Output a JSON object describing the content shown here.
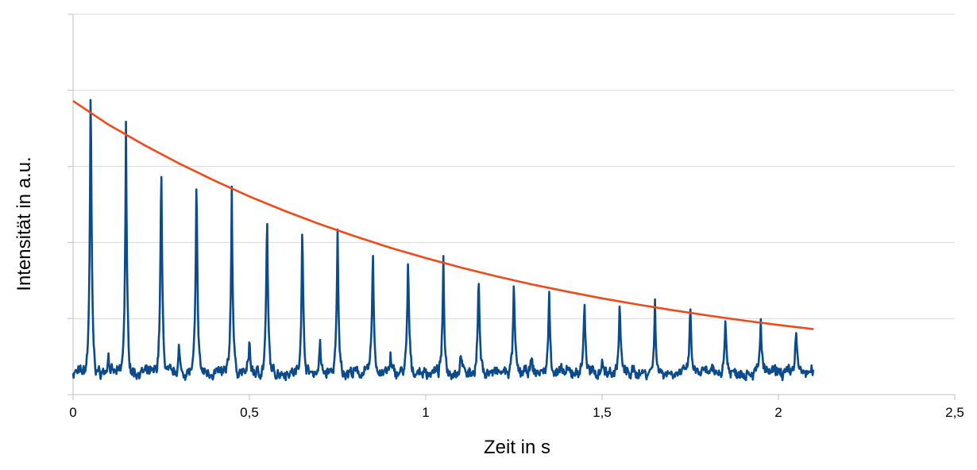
{
  "chart_data": {
    "type": "line",
    "title": "",
    "xlabel": "Zeit in s",
    "ylabel": "Intensität in a.u.",
    "xlim": [
      0,
      2.5
    ],
    "ylim": [
      0,
      1
    ],
    "x_ticks": [
      0,
      0.5,
      1,
      1.5,
      2,
      2.5
    ],
    "x_tick_labels": [
      "0",
      "0,5",
      "1",
      "1,5",
      "2",
      "2,5"
    ],
    "y_ticks": [
      0,
      0.2,
      0.4,
      0.6,
      0.8,
      1.0
    ],
    "y_tick_labels": [],
    "grid": "horizontal",
    "legend": "none",
    "colors": {
      "signal": "#0b4a8b",
      "envelope": "#f04a1a",
      "grid": "#d9d9d9",
      "axis": "#bfbfbf"
    },
    "series": [
      {
        "kind": "signal",
        "baseline": 0.058,
        "x_range": [
          0,
          2.1
        ],
        "peaks": [
          {
            "x": 0.05,
            "y": 0.87
          },
          {
            "x": 0.15,
            "y": 0.71
          },
          {
            "x": 0.25,
            "y": 0.645
          },
          {
            "x": 0.35,
            "y": 0.595
          },
          {
            "x": 0.45,
            "y": 0.555
          },
          {
            "x": 0.55,
            "y": 0.497
          },
          {
            "x": 0.65,
            "y": 0.466
          },
          {
            "x": 0.75,
            "y": 0.433
          },
          {
            "x": 0.85,
            "y": 0.41
          },
          {
            "x": 0.95,
            "y": 0.378
          },
          {
            "x": 1.05,
            "y": 0.354
          },
          {
            "x": 1.15,
            "y": 0.33
          },
          {
            "x": 1.25,
            "y": 0.305
          },
          {
            "x": 1.35,
            "y": 0.275
          },
          {
            "x": 1.45,
            "y": 0.265
          },
          {
            "x": 1.55,
            "y": 0.256
          },
          {
            "x": 1.65,
            "y": 0.24
          },
          {
            "x": 1.75,
            "y": 0.235
          },
          {
            "x": 1.85,
            "y": 0.21
          },
          {
            "x": 1.95,
            "y": 0.2
          },
          {
            "x": 2.05,
            "y": 0.185
          }
        ],
        "small_peaks": [
          {
            "x": 0.1,
            "y": 0.12
          },
          {
            "x": 0.3,
            "y": 0.13
          },
          {
            "x": 0.5,
            "y": 0.155
          },
          {
            "x": 0.7,
            "y": 0.145
          },
          {
            "x": 0.9,
            "y": 0.1
          },
          {
            "x": 1.1,
            "y": 0.125
          },
          {
            "x": 1.3,
            "y": 0.1
          },
          {
            "x": 1.5,
            "y": 0.1
          }
        ]
      },
      {
        "kind": "envelope",
        "x": [
          0,
          0.1,
          0.2,
          0.3,
          0.4,
          0.5,
          0.6,
          0.7,
          0.8,
          0.9,
          1.0,
          1.1,
          1.2,
          1.3,
          1.4,
          1.5,
          1.6,
          1.7,
          1.8,
          1.9,
          2.0,
          2.1
        ],
        "y": [
          0.772,
          0.71,
          0.657,
          0.608,
          0.563,
          0.521,
          0.483,
          0.448,
          0.416,
          0.386,
          0.359,
          0.334,
          0.311,
          0.29,
          0.271,
          0.253,
          0.237,
          0.222,
          0.208,
          0.195,
          0.183,
          0.172
        ]
      }
    ]
  }
}
